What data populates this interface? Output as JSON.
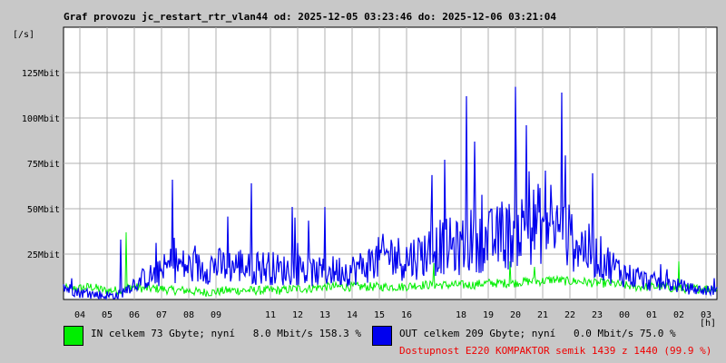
{
  "chart_data": {
    "type": "line",
    "title": "Graf provozu jc_restart_rtr_vlan44 od: 2025-12-05 03:23:46 do: 2025-12-06 03:21:04",
    "ylabel": "[/s]",
    "xlabel": "[h]",
    "ylim": [
      0,
      150
    ],
    "y_ticks": [
      {
        "value": 25,
        "label": "25Mbit"
      },
      {
        "value": 50,
        "label": "50Mbit"
      },
      {
        "value": 75,
        "label": "75Mbit"
      },
      {
        "value": 100,
        "label": "100Mbit"
      },
      {
        "value": 125,
        "label": "125Mbit"
      }
    ],
    "x_range": [
      0,
      24
    ],
    "x_ticks": [
      {
        "value": 0.6,
        "label": "04"
      },
      {
        "value": 1.6,
        "label": "05"
      },
      {
        "value": 2.6,
        "label": "06"
      },
      {
        "value": 3.6,
        "label": "07"
      },
      {
        "value": 4.6,
        "label": "08"
      },
      {
        "value": 5.6,
        "label": "09"
      },
      {
        "value": 7.6,
        "label": "11"
      },
      {
        "value": 8.6,
        "label": "12"
      },
      {
        "value": 9.6,
        "label": "13"
      },
      {
        "value": 10.6,
        "label": "14"
      },
      {
        "value": 11.6,
        "label": "15"
      },
      {
        "value": 12.6,
        "label": "16"
      },
      {
        "value": 14.6,
        "label": "18"
      },
      {
        "value": 15.6,
        "label": "19"
      },
      {
        "value": 16.6,
        "label": "20"
      },
      {
        "value": 17.6,
        "label": "21"
      },
      {
        "value": 18.6,
        "label": "22"
      },
      {
        "value": 19.6,
        "label": "23"
      },
      {
        "value": 20.6,
        "label": "00"
      },
      {
        "value": 21.6,
        "label": "01"
      },
      {
        "value": 22.6,
        "label": "02"
      },
      {
        "value": 23.6,
        "label": "03"
      }
    ],
    "grid": true,
    "series": [
      {
        "name": "IN",
        "color": "#00ee00",
        "x": [
          0,
          0.5,
          1,
          1.5,
          2,
          2.5,
          3,
          3.5,
          4,
          4.5,
          5,
          5.5,
          6,
          6.5,
          7,
          7.5,
          8,
          8.5,
          9,
          9.5,
          10,
          10.5,
          11,
          11.5,
          12,
          12.5,
          13,
          13.5,
          14,
          14.5,
          15,
          15.5,
          16,
          16.5,
          17,
          17.5,
          18,
          18.5,
          19,
          19.5,
          20,
          20.5,
          21,
          21.5,
          22,
          22.5,
          23,
          23.5,
          24
        ],
        "y": [
          6,
          6,
          7,
          5,
          5,
          7,
          6,
          6,
          5,
          5,
          4,
          4,
          5,
          5,
          5,
          5,
          5,
          6,
          6,
          7,
          7,
          7,
          7,
          7,
          7,
          7,
          8,
          8,
          8,
          8,
          8,
          9,
          9,
          9,
          10,
          10,
          11,
          10,
          10,
          9,
          9,
          8,
          7,
          7,
          7,
          6,
          6,
          6,
          6
        ],
        "peaks": [
          {
            "x": 2.3,
            "y": 37
          },
          {
            "x": 13.6,
            "y": 20
          },
          {
            "x": 16.4,
            "y": 21
          },
          {
            "x": 17.3,
            "y": 18
          },
          {
            "x": 22.6,
            "y": 21
          }
        ]
      },
      {
        "name": "OUT",
        "color": "#0000ee",
        "x": [
          0,
          0.5,
          1,
          1.5,
          2,
          2.5,
          3,
          3.5,
          4,
          4.5,
          5,
          5.5,
          6,
          6.5,
          7,
          7.5,
          8,
          8.5,
          9,
          9.5,
          10,
          10.5,
          11,
          11.5,
          12,
          12.5,
          13,
          13.5,
          14,
          14.5,
          15,
          15.5,
          16,
          16.5,
          17,
          17.5,
          18,
          18.5,
          19,
          19.5,
          20,
          20.5,
          21,
          21.5,
          22,
          22.5,
          23,
          23.5,
          24
        ],
        "y": [
          7,
          4,
          3,
          2,
          2,
          8,
          12,
          14,
          20,
          18,
          17,
          19,
          18,
          19,
          17,
          18,
          16,
          17,
          15,
          15,
          16,
          16,
          18,
          22,
          25,
          22,
          24,
          27,
          30,
          28,
          33,
          32,
          34,
          36,
          40,
          42,
          40,
          35,
          30,
          25,
          20,
          15,
          12,
          10,
          9,
          8,
          6,
          5,
          5
        ],
        "peaks": [
          {
            "x": 2.1,
            "y": 33
          },
          {
            "x": 4.0,
            "y": 66
          },
          {
            "x": 6.9,
            "y": 64
          },
          {
            "x": 8.4,
            "y": 51
          },
          {
            "x": 9.6,
            "y": 51
          },
          {
            "x": 14.0,
            "y": 77
          },
          {
            "x": 14.8,
            "y": 112
          },
          {
            "x": 15.1,
            "y": 87
          },
          {
            "x": 17.0,
            "y": 96
          },
          {
            "x": 17.7,
            "y": 71
          },
          {
            "x": 18.3,
            "y": 114
          }
        ]
      }
    ]
  },
  "legend": {
    "in_text": "IN celkem 73 Gbyte; nyní   8.0 Mbit/s 158.3 %",
    "in_color": "#00ee00",
    "out_text": "OUT celkem 209 Gbyte; nyní   0.0 Mbit/s 75.0 %",
    "out_color": "#0000ee",
    "availability": "Dostupnost E220 KOMPAKTOR semik 1439 z 1440 (99.9 %)",
    "availability_color": "#ee0000"
  }
}
